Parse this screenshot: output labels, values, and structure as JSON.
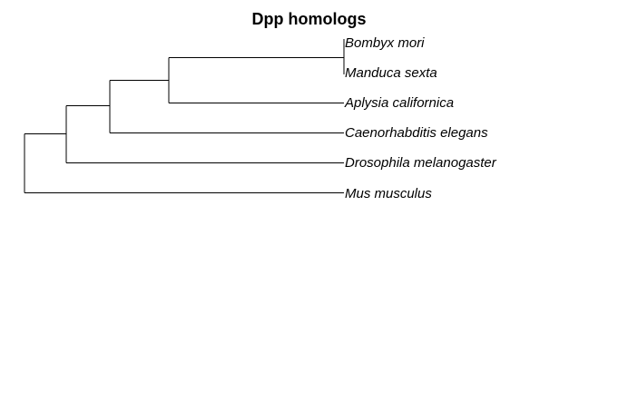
{
  "tree": {
    "title": "Dpp homologs",
    "tips": [
      "Bombyx mori",
      "Manduca sexta",
      "Aplysia californica",
      "Caenorhabditis elegans",
      "Drosophila melanogaster",
      "Mus musculus"
    ],
    "line_color": "#000000",
    "text_color": "#000000"
  }
}
